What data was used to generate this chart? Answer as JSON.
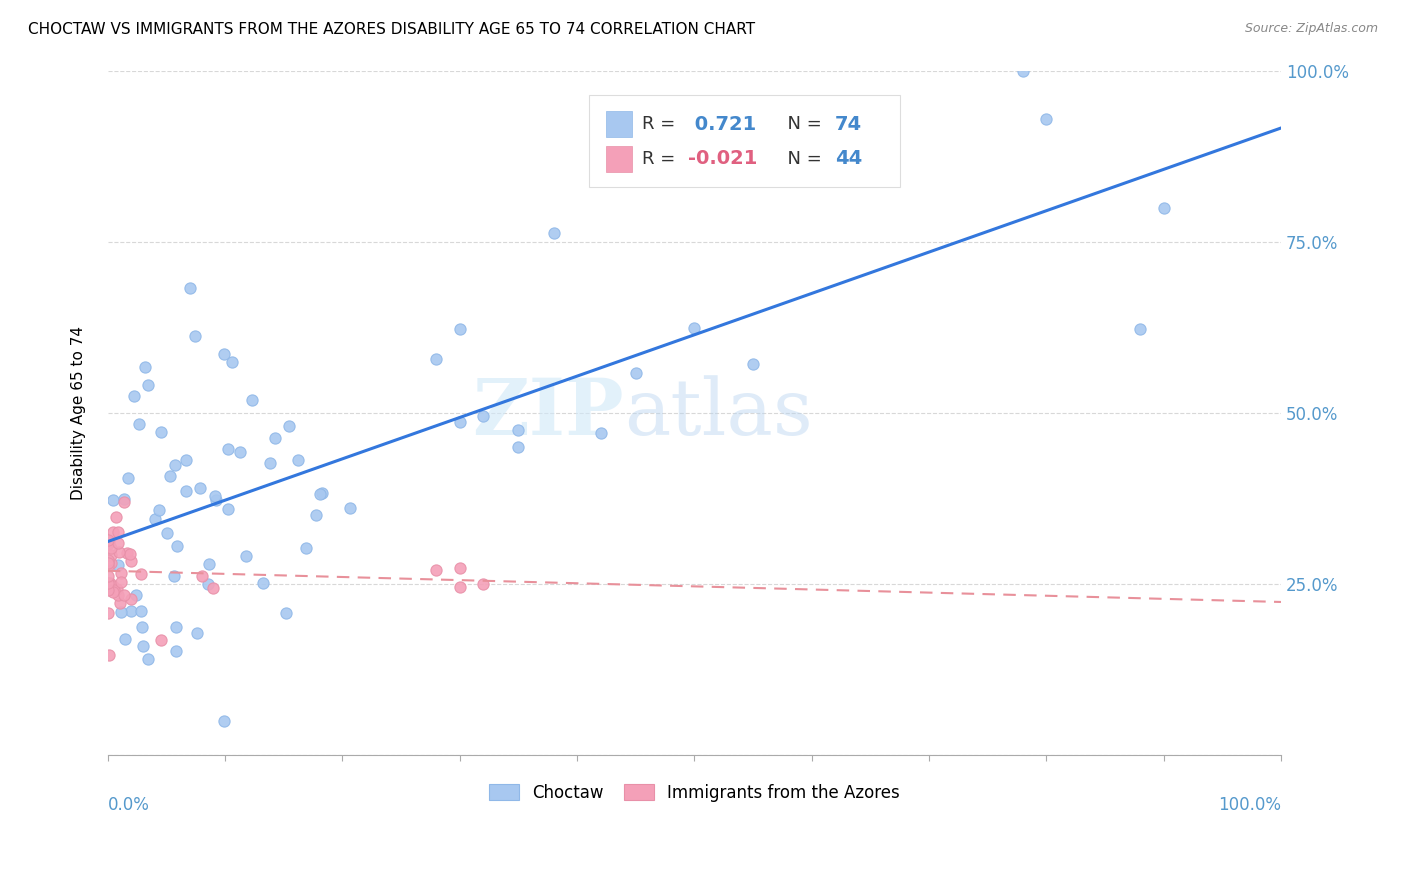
{
  "title": "CHOCTAW VS IMMIGRANTS FROM THE AZORES DISABILITY AGE 65 TO 74 CORRELATION CHART",
  "source": "Source: ZipAtlas.com",
  "ylabel": "Disability Age 65 to 74",
  "watermark_zip": "ZIP",
  "watermark_atlas": "atlas",
  "legend_label1": "Choctaw",
  "legend_label2": "Immigrants from the Azores",
  "r1": 0.721,
  "n1": 74,
  "r2": -0.021,
  "n2": 44,
  "color_blue": "#a8c8f0",
  "color_blue_edge": "#90b8e8",
  "color_pink": "#f4a0b8",
  "color_pink_edge": "#e890a8",
  "color_blue_text": "#4488cc",
  "color_pink_text": "#e06080",
  "line_blue": "#3377dd",
  "line_pink": "#e8909a",
  "background": "#ffffff",
  "grid_color": "#c8c8c8",
  "right_tick_color": "#5599cc"
}
